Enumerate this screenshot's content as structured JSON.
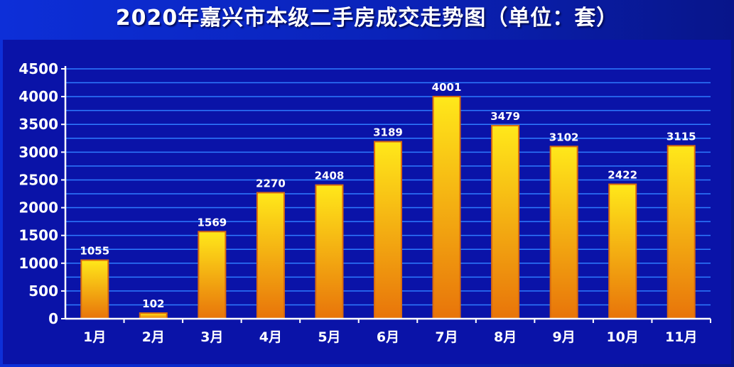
{
  "chart_data": {
    "type": "bar",
    "title": "2020年嘉兴市本级二手房成交走势图（单位：套）",
    "xlabel": "",
    "ylabel": "",
    "categories": [
      "1月",
      "2月",
      "3月",
      "4月",
      "5月",
      "6月",
      "7月",
      "8月",
      "9月",
      "10月",
      "11月"
    ],
    "values": [
      1055,
      102,
      1569,
      2270,
      2408,
      3189,
      4001,
      3479,
      3102,
      2422,
      3115
    ],
    "ylim": [
      0,
      4500
    ],
    "yticks": [
      "0",
      "500",
      "1000",
      "1500",
      "2000",
      "2500",
      "3000",
      "3500",
      "4000",
      "4500"
    ],
    "grid": true,
    "colors": {
      "bar_top": "#ffe81a",
      "bar_bottom": "#e8740a",
      "bar_edge": "#d86a10",
      "grid": "#2f7cff",
      "axis": "#ffffff"
    }
  }
}
